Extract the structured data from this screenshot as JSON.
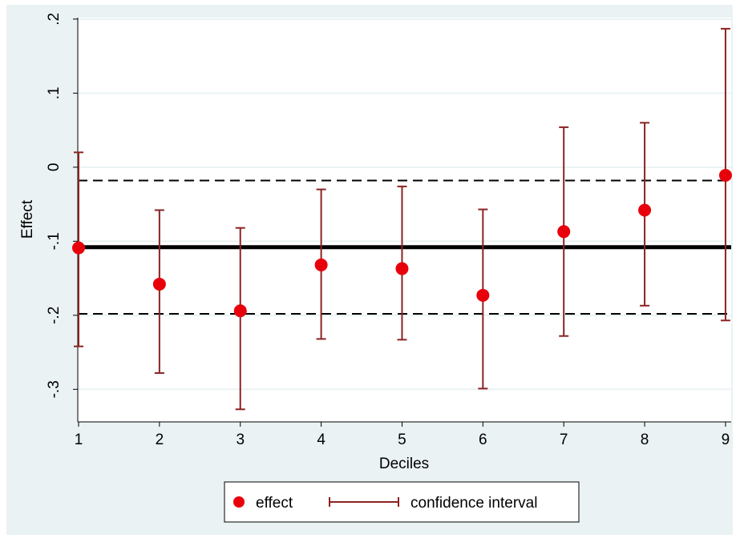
{
  "chart_data": {
    "type": "scatter",
    "title": "",
    "xlabel": "Deciles",
    "ylabel": "Effect",
    "x_ticks": [
      1,
      2,
      3,
      4,
      5,
      6,
      7,
      8,
      9
    ],
    "x_tick_labels": [
      "1",
      "2",
      "3",
      "4",
      "5",
      "6",
      "7",
      "8",
      "9"
    ],
    "y_ticks": [
      0.2,
      0.1,
      0,
      -0.1,
      -0.2,
      -0.3
    ],
    "y_tick_labels": [
      ".2",
      ".1",
      "0",
      "-.1",
      "-.2",
      "-.3"
    ],
    "xlim": [
      0.99,
      9.07
    ],
    "ylim": [
      -0.344,
      0.202
    ],
    "grid": true,
    "legend_position": "bottom",
    "series": [
      {
        "name": "effect",
        "type": "scatter",
        "x": [
          1,
          2,
          3,
          4,
          5,
          6,
          7,
          8,
          9
        ],
        "y": [
          -0.109,
          -0.158,
          -0.194,
          -0.132,
          -0.137,
          -0.173,
          -0.087,
          -0.058,
          -0.011
        ]
      },
      {
        "name": "confidence interval",
        "type": "errorbar",
        "x": [
          1,
          2,
          3,
          4,
          5,
          6,
          7,
          8,
          9
        ],
        "low": [
          -0.242,
          -0.278,
          -0.327,
          -0.232,
          -0.233,
          -0.299,
          -0.228,
          -0.187,
          -0.207
        ],
        "high": [
          0.02,
          -0.058,
          -0.082,
          -0.03,
          -0.026,
          -0.057,
          0.054,
          0.06,
          0.187
        ]
      }
    ],
    "reference_lines": [
      {
        "y": -0.108,
        "style": "solid"
      },
      {
        "y": -0.018,
        "style": "dashed"
      },
      {
        "y": -0.198,
        "style": "dashed"
      }
    ],
    "colors": {
      "background": "#eaf2f3",
      "plot_area": "#ffffff",
      "gridline": "#eaf2f3",
      "point": "#e8000b",
      "interval": "#8b2323",
      "reference_line": "#000000"
    }
  }
}
